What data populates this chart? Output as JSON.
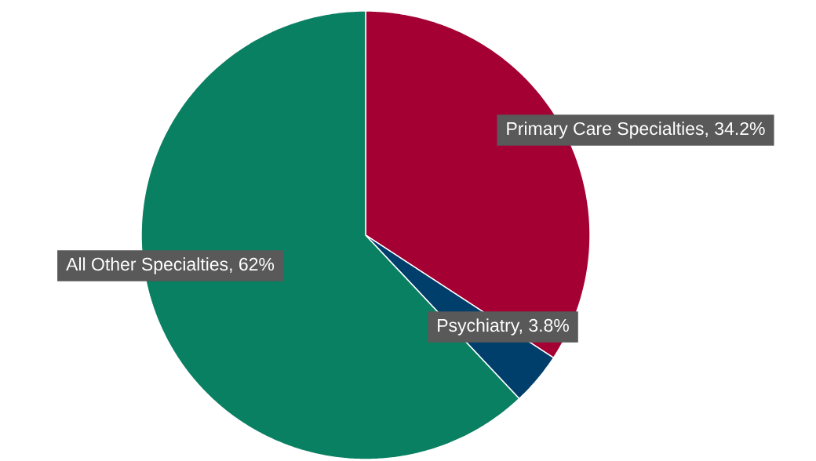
{
  "chart_data": {
    "type": "pie",
    "categories": [
      "Primary Care Specialties, 34.2%",
      "Psychiatry, 3.8%",
      "All Other Specialties, 62%"
    ],
    "values": [
      34.2,
      3.8,
      62
    ],
    "colors": [
      "#a50034",
      "#003f6b",
      "#0a8062"
    ]
  }
}
